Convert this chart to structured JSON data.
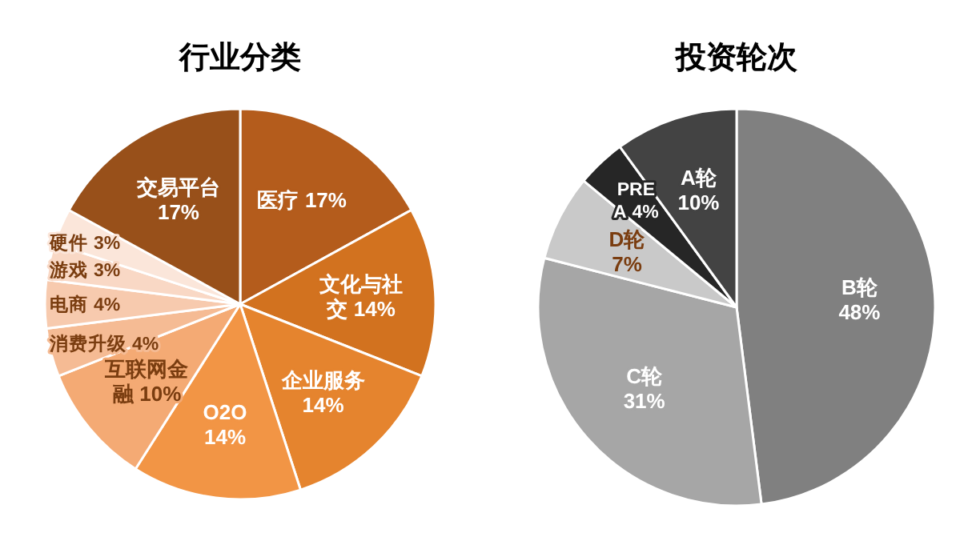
{
  "chart_data": [
    {
      "type": "pie",
      "title": "行业分类",
      "categories": [
        "医疗",
        "文化与社交",
        "企业服务",
        "O2O",
        "互联网金融",
        "消费升级",
        "电商",
        "游戏",
        "硬件",
        "交易平台"
      ],
      "values": [
        17,
        14,
        14,
        14,
        10,
        4,
        4,
        3,
        3,
        17
      ],
      "value_labels": [
        "17%",
        "14%",
        "14%",
        "14%",
        "10%",
        "4%",
        "4%",
        "3%",
        "3%",
        "17%"
      ],
      "colors": [
        "#b45c1c",
        "#d2721f",
        "#e5842e",
        "#f29545",
        "#f4aa74",
        "#f5bb94",
        "#f7caae",
        "#f9d8c5",
        "#fbe6da",
        "#98501a"
      ]
    },
    {
      "type": "pie",
      "title": "投资轮次",
      "categories": [
        "B轮",
        "C轮",
        "D轮",
        "PRE A",
        "A轮"
      ],
      "values": [
        48,
        31,
        7,
        4,
        10
      ],
      "value_labels": [
        "48%",
        "31%",
        "7%",
        "4%",
        "10%"
      ],
      "colors": [
        "#808080",
        "#a6a6a6",
        "#c9c9c9",
        "#262626",
        "#434343"
      ]
    }
  ]
}
